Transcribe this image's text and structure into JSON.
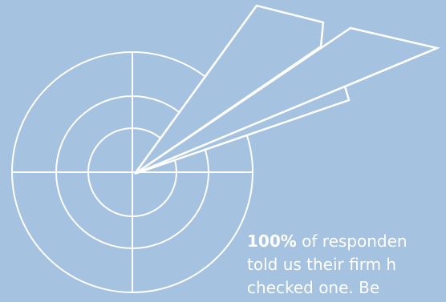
{
  "caption": {
    "percent": "100%",
    "line1_rest": " of responden",
    "line2": "told us their firm h",
    "line3": "checked one. Be"
  },
  "colors": {
    "background": "#a5c2e0",
    "foreground": "#ffffff"
  },
  "icons": [
    "target-icon",
    "paper-plane-icon"
  ]
}
